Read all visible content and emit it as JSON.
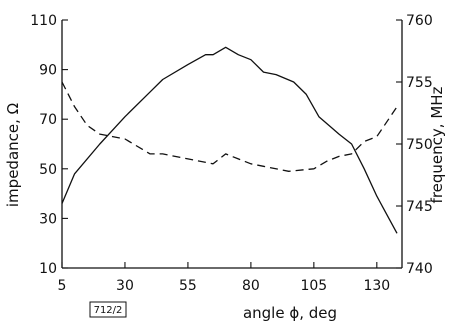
{
  "chart_data": {
    "type": "line",
    "xlabel": "angle ϕ, deg",
    "ylabel_left": "impedance, Ω",
    "ylabel_right": "frequency, MHz",
    "x_ticks": [
      5,
      30,
      55,
      80,
      105,
      130
    ],
    "y_left_ticks": [
      10,
      30,
      50,
      70,
      90,
      110
    ],
    "y_right_ticks": [
      740,
      745,
      750,
      755,
      760
    ],
    "xlim": [
      5,
      140
    ],
    "ylim_left": [
      10,
      110
    ],
    "ylim_right": [
      740,
      760
    ],
    "grid": false,
    "series": [
      {
        "axis": "left",
        "style": "solid",
        "points": [
          [
            5,
            36
          ],
          [
            10,
            48
          ],
          [
            20,
            60
          ],
          [
            30,
            71
          ],
          [
            40,
            81
          ],
          [
            45,
            86
          ],
          [
            55,
            92
          ],
          [
            62,
            96
          ],
          [
            65,
            96
          ],
          [
            70,
            99
          ],
          [
            75,
            96
          ],
          [
            80,
            94
          ],
          [
            85,
            89
          ],
          [
            90,
            88
          ],
          [
            97,
            85
          ],
          [
            102,
            80
          ],
          [
            107,
            71
          ],
          [
            115,
            64
          ],
          [
            120,
            60
          ],
          [
            125,
            50
          ],
          [
            130,
            39
          ],
          [
            138,
            24
          ]
        ]
      },
      {
        "axis": "right",
        "style": "dashed",
        "points": [
          [
            5,
            755
          ],
          [
            10,
            753
          ],
          [
            15,
            751.5
          ],
          [
            20,
            750.8
          ],
          [
            30,
            750.4
          ],
          [
            40,
            749.2
          ],
          [
            45,
            749.2
          ],
          [
            55,
            748.8
          ],
          [
            65,
            748.4
          ],
          [
            70,
            749.2
          ],
          [
            75,
            748.8
          ],
          [
            80,
            748.4
          ],
          [
            85,
            748.2
          ],
          [
            95,
            747.8
          ],
          [
            105,
            748.0
          ],
          [
            110,
            748.6
          ],
          [
            115,
            749
          ],
          [
            120,
            749.2
          ],
          [
            125,
            750.2
          ],
          [
            130,
            750.6
          ],
          [
            138,
            753
          ]
        ]
      }
    ]
  },
  "badge": "712/2"
}
